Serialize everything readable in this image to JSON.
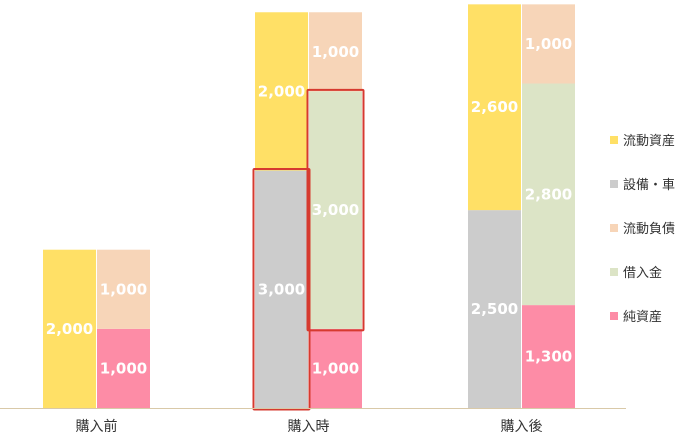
{
  "chart_data": {
    "type": "bar",
    "stacked": true,
    "title": "",
    "xlabel": "",
    "ylabel": "",
    "ylim": [
      0,
      4700
    ],
    "grid": false,
    "legend_position": "right",
    "categories": [
      "購入前",
      "購入時",
      "購入後"
    ],
    "stacks": [
      {
        "category": "購入前",
        "assets": [
          {
            "name": "流動資産",
            "value": 2000,
            "label": "2,000"
          }
        ],
        "liabilities": [
          {
            "name": "純資産",
            "value": 1000,
            "label": "1,000"
          },
          {
            "name": "流動負債",
            "value": 1000,
            "label": "1,000"
          }
        ]
      },
      {
        "category": "購入時",
        "assets": [
          {
            "name": "設備・車",
            "value": 3000,
            "label": "3,000",
            "highlight": true
          },
          {
            "name": "流動資産",
            "value": 2000,
            "label": "2,000"
          }
        ],
        "liabilities": [
          {
            "name": "純資産",
            "value": 1000,
            "label": "1,000"
          },
          {
            "name": "借入金",
            "value": 3000,
            "label": "3,000",
            "highlight": true
          },
          {
            "name": "流動負債",
            "value": 1000,
            "label": "1,000"
          }
        ]
      },
      {
        "category": "購入後",
        "assets": [
          {
            "name": "設備・車",
            "value": 2500,
            "label": "2,500"
          },
          {
            "name": "流動資産",
            "value": 2600,
            "label": "2,600"
          }
        ],
        "liabilities": [
          {
            "name": "純資産",
            "value": 1300,
            "label": "1,300"
          },
          {
            "name": "借入金",
            "value": 2800,
            "label": "2,800"
          },
          {
            "name": "流動負債",
            "value": 1000,
            "label": "1,000"
          }
        ]
      }
    ],
    "legend": [
      {
        "name": "流動資産",
        "color": "#ffe066"
      },
      {
        "name": "設備・車",
        "color": "#cccccc"
      },
      {
        "name": "流動負債",
        "color": "#f7d5b8"
      },
      {
        "name": "借入金",
        "color": "#dce4c6"
      },
      {
        "name": "純資産",
        "color": "#fd8ca6"
      }
    ],
    "highlight_color": "#d63a2f",
    "axis_color": "#d9c9a8"
  }
}
